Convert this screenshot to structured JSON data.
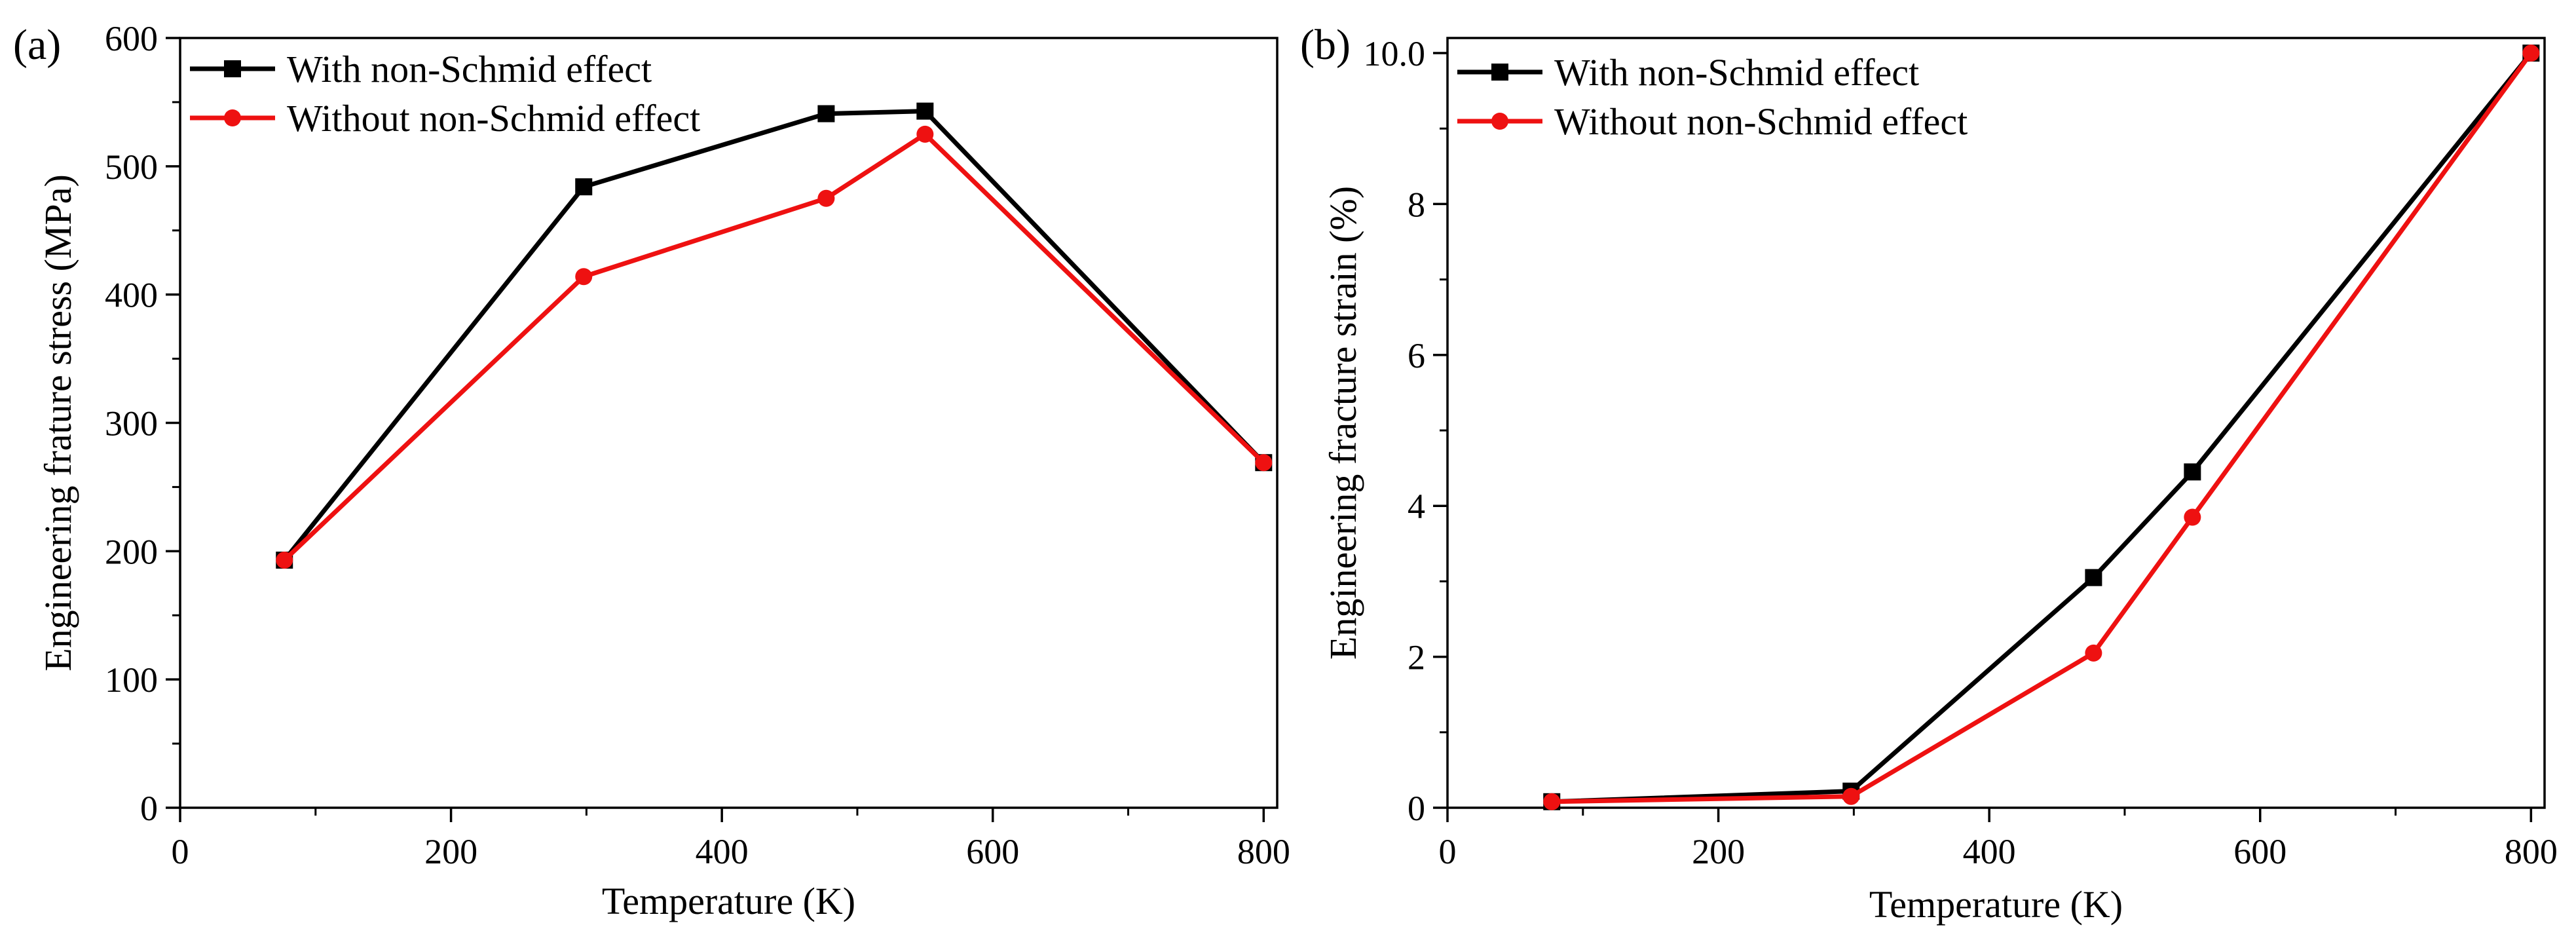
{
  "figure": {
    "colors": {
      "with": "#000000",
      "without": "#ee1111",
      "axis": "#000000"
    }
  },
  "chart_data": [
    {
      "panel_label": "(a)",
      "type": "line",
      "xlabel": "Temperature (K)",
      "ylabel": "Engineering frature stress (MPa)",
      "xlim": [
        0,
        810
      ],
      "ylim": [
        0,
        600
      ],
      "xticks": [
        0,
        200,
        400,
        600,
        800
      ],
      "xminor": [
        100,
        300,
        500,
        700
      ],
      "yticks": [
        0,
        100,
        200,
        300,
        400,
        500,
        600
      ],
      "yminor": [
        50,
        150,
        250,
        350,
        450,
        550
      ],
      "legend": "top-left",
      "series": [
        {
          "name": "With non-Schmid effect",
          "marker": "square",
          "color": "#000000",
          "x": [
            77,
            298,
            477,
            550,
            800
          ],
          "y": [
            193,
            484,
            541,
            543,
            269
          ]
        },
        {
          "name": "Without non-Schmid effect",
          "marker": "circle",
          "color": "#ee1111",
          "x": [
            77,
            298,
            477,
            550,
            800
          ],
          "y": [
            193,
            414,
            475,
            525,
            269
          ]
        }
      ]
    },
    {
      "panel_label": "(b)",
      "type": "line",
      "xlabel": "Temperature (K)",
      "ylabel": "Engineering fracture strain (%)",
      "xlim": [
        0,
        810
      ],
      "ylim": [
        0,
        10.2
      ],
      "xticks": [
        0,
        200,
        400,
        600,
        800
      ],
      "xminor": [
        100,
        300,
        500,
        700
      ],
      "yticks": [
        0,
        2,
        4,
        6,
        8,
        10
      ],
      "ytick_labels": [
        "0",
        "2",
        "4",
        "6",
        "8",
        "10.0"
      ],
      "yminor": [
        1,
        3,
        5,
        7,
        9
      ],
      "legend": "top-left",
      "series": [
        {
          "name": "With non-Schmid effect",
          "marker": "square",
          "color": "#000000",
          "x": [
            77,
            298,
            477,
            550,
            800
          ],
          "y": [
            0.08,
            0.22,
            3.05,
            4.45,
            10.0
          ]
        },
        {
          "name": "Without non-Schmid effect",
          "marker": "circle",
          "color": "#ee1111",
          "x": [
            77,
            298,
            477,
            550,
            800
          ],
          "y": [
            0.08,
            0.15,
            2.05,
            3.85,
            10.0
          ]
        }
      ]
    }
  ]
}
